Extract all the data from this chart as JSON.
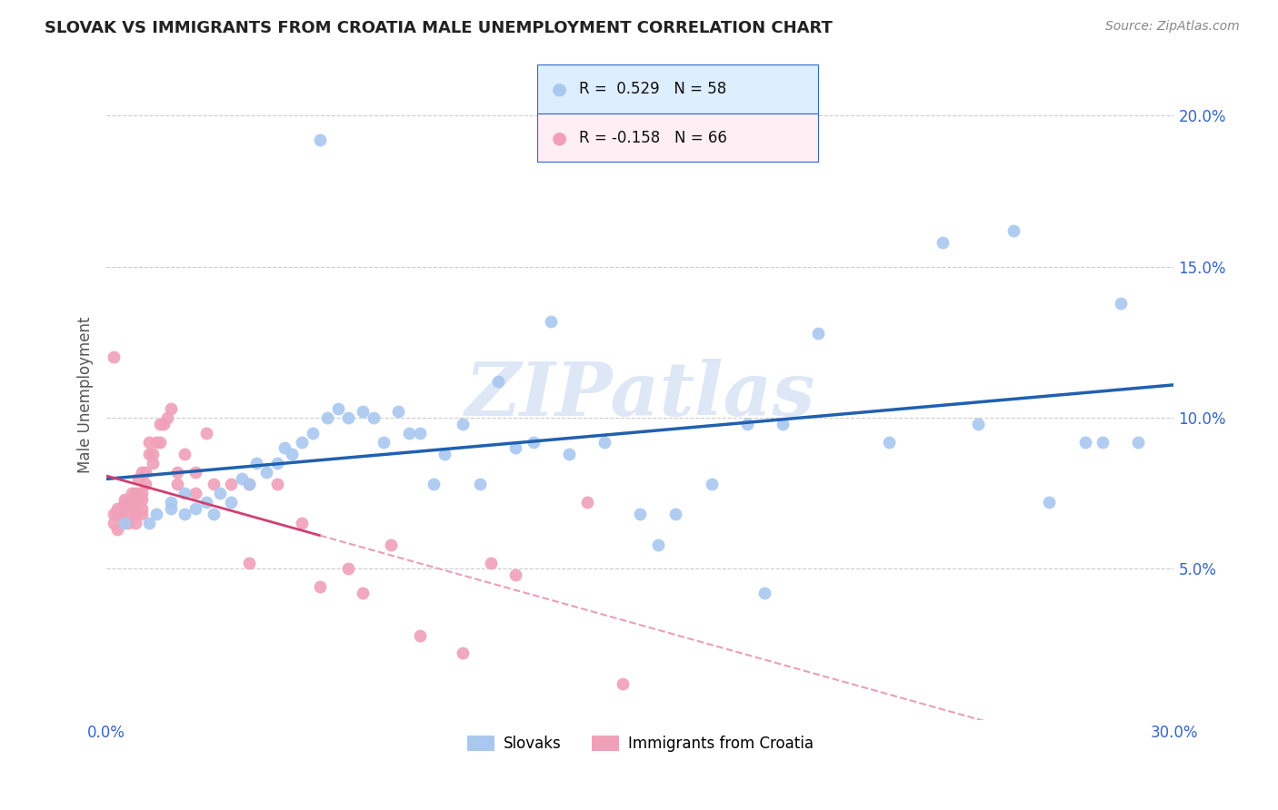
{
  "title": "SLOVAK VS IMMIGRANTS FROM CROATIA MALE UNEMPLOYMENT CORRELATION CHART",
  "source": "Source: ZipAtlas.com",
  "ylabel": "Male Unemployment",
  "xlim": [
    0.0,
    0.3
  ],
  "ylim": [
    0.0,
    0.215
  ],
  "xticks": [
    0.0,
    0.05,
    0.1,
    0.15,
    0.2,
    0.25,
    0.3
  ],
  "yticks": [
    0.05,
    0.1,
    0.15,
    0.2
  ],
  "xticklabels": [
    "0.0%",
    "",
    "",
    "",
    "",
    "",
    "30.0%"
  ],
  "yticklabels": [
    "5.0%",
    "10.0%",
    "15.0%",
    "20.0%"
  ],
  "slovak_r": 0.529,
  "slovak_n": 58,
  "croatia_r": -0.158,
  "croatia_n": 66,
  "blue_color": "#a8c8f0",
  "blue_line_color": "#2060b0",
  "pink_color": "#f0a0b8",
  "pink_line_color": "#d04070",
  "pink_dash_color": "#e8a0b8",
  "watermark_color": "#c8d8ef",
  "background_color": "#ffffff",
  "grid_color": "#cccccc",
  "tick_color": "#3366cc",
  "legend_blue_bg": "#ddeeff",
  "legend_pink_bg": "#ffeef4",
  "blue_scatter_x": [
    0.005,
    0.012,
    0.014,
    0.018,
    0.018,
    0.022,
    0.022,
    0.025,
    0.028,
    0.03,
    0.032,
    0.035,
    0.038,
    0.04,
    0.042,
    0.045,
    0.048,
    0.05,
    0.052,
    0.055,
    0.058,
    0.06,
    0.062,
    0.065,
    0.068,
    0.072,
    0.075,
    0.078,
    0.082,
    0.085,
    0.088,
    0.092,
    0.095,
    0.1,
    0.105,
    0.11,
    0.115,
    0.12,
    0.125,
    0.13,
    0.14,
    0.15,
    0.155,
    0.16,
    0.17,
    0.18,
    0.185,
    0.19,
    0.2,
    0.22,
    0.235,
    0.245,
    0.255,
    0.265,
    0.275,
    0.28,
    0.285,
    0.29
  ],
  "blue_scatter_y": [
    0.065,
    0.065,
    0.068,
    0.07,
    0.072,
    0.068,
    0.075,
    0.07,
    0.072,
    0.068,
    0.075,
    0.072,
    0.08,
    0.078,
    0.085,
    0.082,
    0.085,
    0.09,
    0.088,
    0.092,
    0.095,
    0.192,
    0.1,
    0.103,
    0.1,
    0.102,
    0.1,
    0.092,
    0.102,
    0.095,
    0.095,
    0.078,
    0.088,
    0.098,
    0.078,
    0.112,
    0.09,
    0.092,
    0.132,
    0.088,
    0.092,
    0.068,
    0.058,
    0.068,
    0.078,
    0.098,
    0.042,
    0.098,
    0.128,
    0.092,
    0.158,
    0.098,
    0.162,
    0.072,
    0.092,
    0.092,
    0.138,
    0.092
  ],
  "pink_scatter_x": [
    0.002,
    0.002,
    0.003,
    0.003,
    0.003,
    0.004,
    0.004,
    0.005,
    0.005,
    0.005,
    0.005,
    0.006,
    0.006,
    0.006,
    0.006,
    0.007,
    0.007,
    0.007,
    0.007,
    0.008,
    0.008,
    0.008,
    0.008,
    0.009,
    0.009,
    0.009,
    0.01,
    0.01,
    0.01,
    0.01,
    0.01,
    0.011,
    0.011,
    0.012,
    0.012,
    0.013,
    0.013,
    0.014,
    0.015,
    0.015,
    0.016,
    0.017,
    0.018,
    0.02,
    0.02,
    0.022,
    0.025,
    0.025,
    0.028,
    0.03,
    0.035,
    0.04,
    0.04,
    0.048,
    0.055,
    0.06,
    0.068,
    0.072,
    0.08,
    0.088,
    0.1,
    0.108,
    0.115,
    0.135,
    0.145,
    0.002
  ],
  "pink_scatter_y": [
    0.068,
    0.065,
    0.07,
    0.068,
    0.063,
    0.07,
    0.068,
    0.068,
    0.073,
    0.072,
    0.067,
    0.072,
    0.07,
    0.068,
    0.065,
    0.075,
    0.073,
    0.07,
    0.068,
    0.075,
    0.072,
    0.068,
    0.065,
    0.08,
    0.075,
    0.072,
    0.075,
    0.073,
    0.07,
    0.068,
    0.082,
    0.078,
    0.082,
    0.092,
    0.088,
    0.088,
    0.085,
    0.092,
    0.098,
    0.092,
    0.098,
    0.1,
    0.103,
    0.078,
    0.082,
    0.088,
    0.082,
    0.075,
    0.095,
    0.078,
    0.078,
    0.052,
    0.078,
    0.078,
    0.065,
    0.044,
    0.05,
    0.042,
    0.058,
    0.028,
    0.022,
    0.052,
    0.048,
    0.072,
    0.012,
    0.12
  ]
}
